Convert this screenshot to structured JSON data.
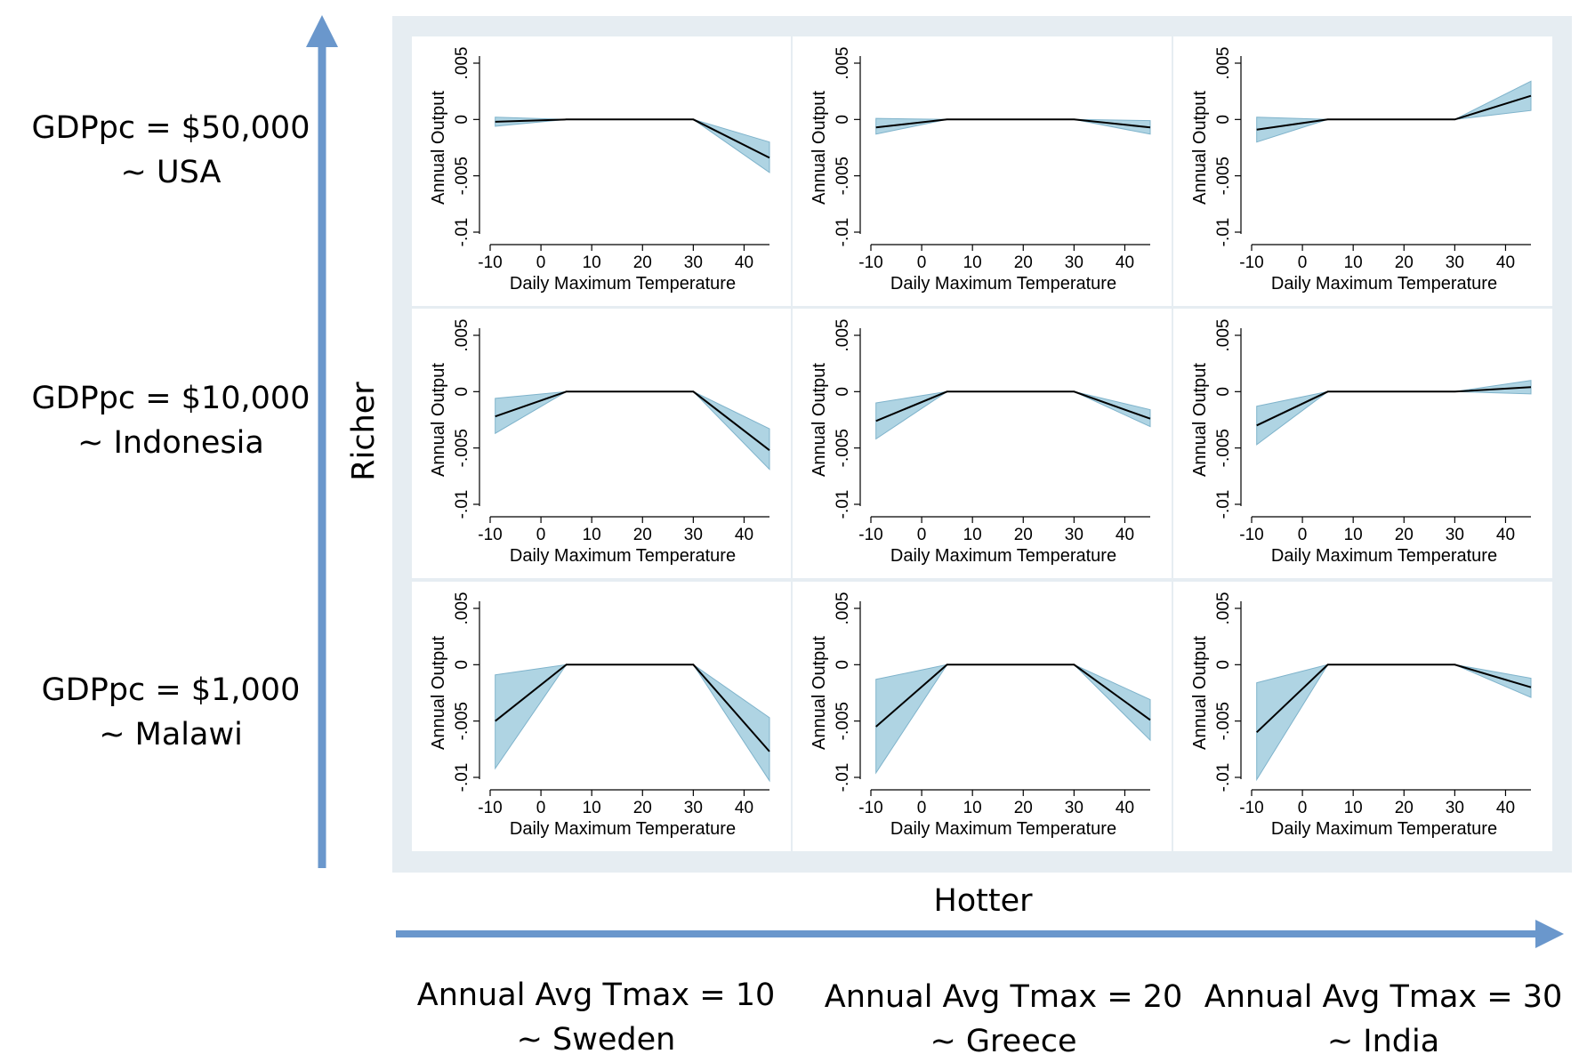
{
  "figure": {
    "y_axis_name": "Richer",
    "x_axis_name": "Hotter",
    "row_labels": [
      {
        "line1": "GDPpc = $50,000",
        "line2": "~ USA"
      },
      {
        "line1": "GDPpc = $10,000",
        "line2": "~ Indonesia"
      },
      {
        "line1": "GDPpc = $1,000",
        "line2": "~ Malawi"
      }
    ],
    "col_labels": [
      {
        "line1": "Annual Avg Tmax = 10",
        "line2": "~ Sweden"
      },
      {
        "line1": "Annual Avg Tmax = 20",
        "line2": "~ Greece"
      },
      {
        "line1": "Annual Avg Tmax = 30",
        "line2": "~ India"
      }
    ],
    "colors": {
      "arrow": "#6a97cc",
      "grid_background": "#e6edf2",
      "plot_background": "#ffffff",
      "ci_fill": "#a6cfe0",
      "ci_stroke": "#7fb3cb",
      "line": "#000000"
    }
  },
  "chart_data": [
    {
      "type": "line",
      "row": "GDPpc = $50,000",
      "column": "Annual Avg Tmax = 10",
      "xlabel": "Daily Maximum Temperature",
      "ylabel": "Annual Output",
      "xticks": [
        -10,
        0,
        10,
        20,
        30,
        40
      ],
      "yticks": [
        -0.01,
        -0.005,
        0,
        0.005
      ],
      "ytick_labels": [
        "-.01",
        "-.005",
        "0",
        ".005"
      ],
      "xlim": [
        -10,
        45
      ],
      "ylim": [
        -0.01,
        0.005
      ],
      "x": [
        -9,
        5,
        30,
        45
      ],
      "y": [
        -0.0002,
        0,
        0,
        -0.0034
      ],
      "ci_lower": [
        -0.0006,
        0,
        0,
        -0.0047
      ],
      "ci_upper": [
        0.0002,
        0,
        0,
        -0.002
      ]
    },
    {
      "type": "line",
      "row": "GDPpc = $50,000",
      "column": "Annual Avg Tmax = 20",
      "xlabel": "Daily Maximum Temperature",
      "ylabel": "Annual Output",
      "xticks": [
        -10,
        0,
        10,
        20,
        30,
        40
      ],
      "yticks": [
        -0.01,
        -0.005,
        0,
        0.005
      ],
      "ytick_labels": [
        "-.01",
        "-.005",
        "0",
        ".005"
      ],
      "xlim": [
        -10,
        45
      ],
      "ylim": [
        -0.01,
        0.005
      ],
      "x": [
        -9,
        5,
        30,
        45
      ],
      "y": [
        -0.0007,
        0,
        0,
        -0.0007
      ],
      "ci_lower": [
        -0.0013,
        0,
        0,
        -0.0013
      ],
      "ci_upper": [
        0.0001,
        0,
        0,
        -0.0001
      ]
    },
    {
      "type": "line",
      "row": "GDPpc = $50,000",
      "column": "Annual Avg Tmax = 30",
      "xlabel": "Daily Maximum Temperature",
      "ylabel": "Annual Output",
      "xticks": [
        -10,
        0,
        10,
        20,
        30,
        40
      ],
      "yticks": [
        -0.01,
        -0.005,
        0,
        0.005
      ],
      "ytick_labels": [
        "-.01",
        "-.005",
        "0",
        ".005"
      ],
      "xlim": [
        -10,
        45
      ],
      "ylim": [
        -0.01,
        0.005
      ],
      "x": [
        -9,
        5,
        30,
        45
      ],
      "y": [
        -0.0009,
        0,
        0,
        0.0021
      ],
      "ci_lower": [
        -0.002,
        0,
        0,
        0.0008
      ],
      "ci_upper": [
        0.0002,
        0,
        0,
        0.0034
      ]
    },
    {
      "type": "line",
      "row": "GDPpc = $10,000",
      "column": "Annual Avg Tmax = 10",
      "xlabel": "Daily Maximum Temperature",
      "ylabel": "Annual Output",
      "xticks": [
        -10,
        0,
        10,
        20,
        30,
        40
      ],
      "yticks": [
        -0.01,
        -0.005,
        0,
        0.005
      ],
      "ytick_labels": [
        "-.01",
        "-.005",
        "0",
        ".005"
      ],
      "xlim": [
        -10,
        45
      ],
      "ylim": [
        -0.01,
        0.005
      ],
      "x": [
        -9,
        5,
        30,
        45
      ],
      "y": [
        -0.0022,
        0,
        0,
        -0.0052
      ],
      "ci_lower": [
        -0.0037,
        0,
        0,
        -0.0069
      ],
      "ci_upper": [
        -0.0006,
        0,
        0,
        -0.0033
      ]
    },
    {
      "type": "line",
      "row": "GDPpc = $10,000",
      "column": "Annual Avg Tmax = 20",
      "xlabel": "Daily Maximum Temperature",
      "ylabel": "Annual Output",
      "xticks": [
        -10,
        0,
        10,
        20,
        30,
        40
      ],
      "yticks": [
        -0.01,
        -0.005,
        0,
        0.005
      ],
      "ytick_labels": [
        "-.01",
        "-.005",
        "0",
        ".005"
      ],
      "xlim": [
        -10,
        45
      ],
      "ylim": [
        -0.01,
        0.005
      ],
      "x": [
        -9,
        5,
        30,
        45
      ],
      "y": [
        -0.0026,
        0,
        0,
        -0.0024
      ],
      "ci_lower": [
        -0.0042,
        0,
        0,
        -0.0031
      ],
      "ci_upper": [
        -0.001,
        0,
        0,
        -0.0016
      ]
    },
    {
      "type": "line",
      "row": "GDPpc = $10,000",
      "column": "Annual Avg Tmax = 30",
      "xlabel": "Daily Maximum Temperature",
      "ylabel": "Annual Output",
      "xticks": [
        -10,
        0,
        10,
        20,
        30,
        40
      ],
      "yticks": [
        -0.01,
        -0.005,
        0,
        0.005
      ],
      "ytick_labels": [
        "-.01",
        "-.005",
        "0",
        ".005"
      ],
      "xlim": [
        -10,
        45
      ],
      "ylim": [
        -0.01,
        0.005
      ],
      "x": [
        -9,
        5,
        30,
        45
      ],
      "y": [
        -0.003,
        0,
        0,
        0.0004
      ],
      "ci_lower": [
        -0.0047,
        0,
        0,
        -0.0002
      ],
      "ci_upper": [
        -0.0013,
        0,
        0,
        0.001
      ]
    },
    {
      "type": "line",
      "row": "GDPpc = $1,000",
      "column": "Annual Avg Tmax = 10",
      "xlabel": "Daily Maximum Temperature",
      "ylabel": "Annual Output",
      "xticks": [
        -10,
        0,
        10,
        20,
        30,
        40
      ],
      "yticks": [
        -0.01,
        -0.005,
        0,
        0.005
      ],
      "ytick_labels": [
        "-.01",
        "-.005",
        "0",
        ".005"
      ],
      "xlim": [
        -10,
        45
      ],
      "ylim": [
        -0.01,
        0.005
      ],
      "x": [
        -9,
        5,
        30,
        45
      ],
      "y": [
        -0.005,
        0,
        0,
        -0.0077
      ],
      "ci_lower": [
        -0.0092,
        0,
        0,
        -0.0103
      ],
      "ci_upper": [
        -0.0009,
        0,
        0,
        -0.0047
      ]
    },
    {
      "type": "line",
      "row": "GDPpc = $1,000",
      "column": "Annual Avg Tmax = 20",
      "xlabel": "Daily Maximum Temperature",
      "ylabel": "Annual Output",
      "xticks": [
        -10,
        0,
        10,
        20,
        30,
        40
      ],
      "yticks": [
        -0.01,
        -0.005,
        0,
        0.005
      ],
      "ytick_labels": [
        "-.01",
        "-.005",
        "0",
        ".005"
      ],
      "xlim": [
        -10,
        45
      ],
      "ylim": [
        -0.01,
        0.005
      ],
      "x": [
        -9,
        5,
        30,
        45
      ],
      "y": [
        -0.0055,
        0,
        0,
        -0.0049
      ],
      "ci_lower": [
        -0.0096,
        0,
        0,
        -0.0067
      ],
      "ci_upper": [
        -0.0013,
        0,
        0,
        -0.0031
      ]
    },
    {
      "type": "line",
      "row": "GDPpc = $1,000",
      "column": "Annual Avg Tmax = 30",
      "xlabel": "Daily Maximum Temperature",
      "ylabel": "Annual Output",
      "xticks": [
        -10,
        0,
        10,
        20,
        30,
        40
      ],
      "yticks": [
        -0.01,
        -0.005,
        0,
        0.005
      ],
      "ytick_labels": [
        "-.01",
        "-.005",
        "0",
        ".005"
      ],
      "xlim": [
        -10,
        45
      ],
      "ylim": [
        -0.01,
        0.005
      ],
      "x": [
        -9,
        5,
        30,
        45
      ],
      "y": [
        -0.006,
        0,
        0,
        -0.002
      ],
      "ci_lower": [
        -0.0102,
        0,
        0,
        -0.0029
      ],
      "ci_upper": [
        -0.0016,
        0,
        0,
        -0.0012
      ]
    }
  ]
}
